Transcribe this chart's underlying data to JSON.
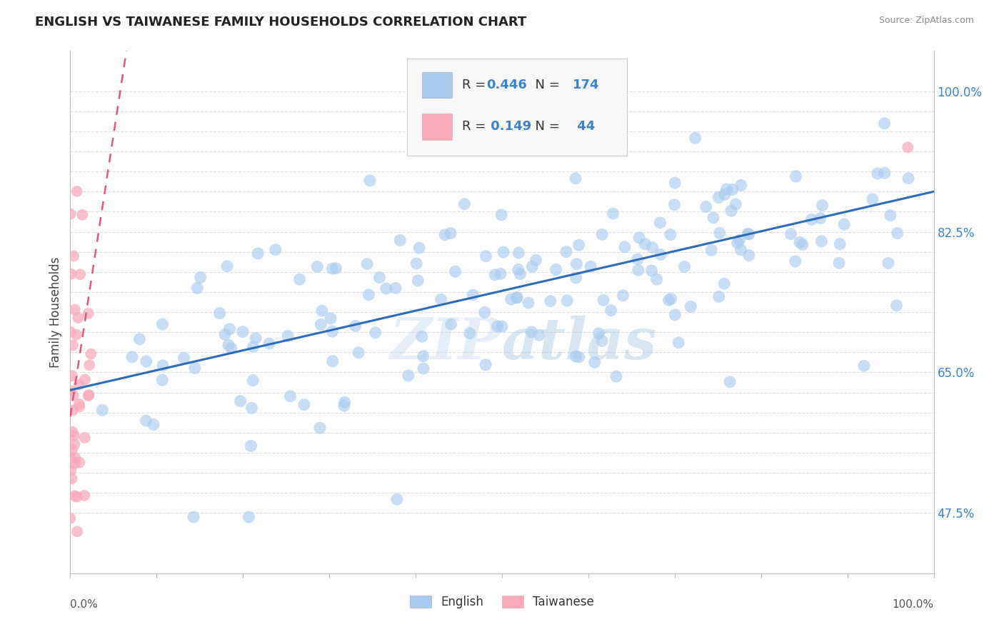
{
  "title": "ENGLISH VS TAIWANESE FAMILY HOUSEHOLDS CORRELATION CHART",
  "source": "Source: ZipAtlas.com",
  "ylabel": "Family Households",
  "watermark": "ZIPAtlas",
  "english_R": 0.446,
  "english_N": 174,
  "taiwanese_R": 0.149,
  "taiwanese_N": 44,
  "english_color": "#A8CCF0",
  "english_line_color": "#2B6CB8",
  "taiwanese_color": "#F8AABB",
  "taiwanese_line_color": "#E05878",
  "background_color": "#FFFFFF",
  "grid_color": "#DDDDDD",
  "right_tick_color": "#3B82CC",
  "title_color": "#222222",
  "source_color": "#888888",
  "ylabel_color": "#444444",
  "xlim": [
    0.0,
    1.0
  ],
  "ylim": [
    0.4,
    1.05
  ],
  "right_yticks": [
    0.475,
    0.65,
    0.825,
    1.0
  ],
  "right_ytick_labels": [
    "47.5%",
    "65.0%",
    "82.5%",
    "100.0%"
  ],
  "grid_yticks": [
    0.475,
    0.5,
    0.525,
    0.55,
    0.575,
    0.6,
    0.625,
    0.65,
    0.675,
    0.7,
    0.725,
    0.75,
    0.775,
    0.8,
    0.825,
    0.85,
    0.875,
    0.9,
    0.925,
    0.95,
    0.975,
    1.0
  ],
  "eng_line_x0": 0.0,
  "eng_line_x1": 1.0,
  "eng_line_y0": 0.628,
  "eng_line_y1": 0.875,
  "tai_line_x0": 0.0,
  "tai_line_x1": 0.065,
  "tai_line_y0": 0.595,
  "tai_line_y1": 1.05
}
